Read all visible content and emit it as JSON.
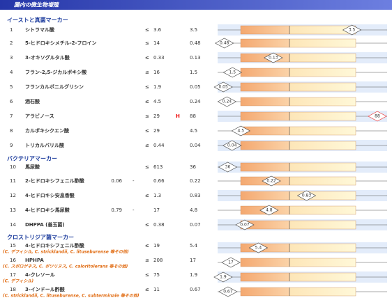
{
  "header": {
    "title": "腸内の微生物増殖"
  },
  "sections": [
    {
      "title": "イーストと真菌マーカー",
      "rows": [
        {
          "num": 1,
          "name": "シトラマル酸",
          "op": "≤",
          "high": 3.6,
          "value": 3.5
        },
        {
          "num": 2,
          "name": "5-ヒドロキシメチル-2-フロイン",
          "op": "≤",
          "high": 14,
          "value": 0.48
        },
        {
          "num": 3,
          "name": "3-オキソグルタル酸",
          "op": "≤",
          "high": 0.33,
          "value": 0.13
        },
        {
          "num": 4,
          "name": "フラン-2,5-ジカルボキシ酸",
          "op": "≤",
          "high": 16,
          "value": 1.5
        },
        {
          "num": 5,
          "name": "フランカルボニルグリシン",
          "op": "≤",
          "high": 1.9,
          "value": 0.05
        },
        {
          "num": 6,
          "name": "酒石酸",
          "op": "≤",
          "high": 4.5,
          "value": 0.24
        },
        {
          "num": 7,
          "name": "アラビノース",
          "op": "≤",
          "high": 29,
          "flag": "H",
          "value": 88
        },
        {
          "num": 8,
          "name": "カルボキシクエン酸",
          "op": "≤",
          "high": 29,
          "value": 4.5
        },
        {
          "num": 9,
          "name": "トリカルバリル酸",
          "op": "≤",
          "high": 0.44,
          "value": 0.04
        }
      ]
    },
    {
      "title": "バクテリアマーカー",
      "rows": [
        {
          "num": 10,
          "name": "馬尿酸",
          "op": "≤",
          "high": 613,
          "value": 36
        },
        {
          "num": 11,
          "name": "2-ヒドロキシフェニル酢酸",
          "low": 0.06,
          "op": "-",
          "high": 0.66,
          "value": 0.22
        },
        {
          "num": 12,
          "name": "4-ヒドロキシ安息香酸",
          "op": "≤",
          "high": 1.3,
          "value": 0.83
        },
        {
          "num": 13,
          "name": "4-ヒドロキシ馬尿酸",
          "low": 0.79,
          "op": "-",
          "high": 17,
          "value": 4.8
        },
        {
          "num": 14,
          "name": "DHPPA (善玉菌)",
          "op": "≤",
          "high": 0.38,
          "value": 0.07
        }
      ]
    },
    {
      "title": "クロストリジア菌マーカー",
      "rows": [
        {
          "num": 15,
          "name": "4-ヒドロキシフェニル酢酸",
          "note": "(C. デフィシル, C. stricklandii, C. lituseburense 等その他)",
          "op": "≤",
          "high": 19,
          "value": 5.4
        },
        {
          "num": 16,
          "name": "HPHPA",
          "note": "(C. スポロゲネス, C. ボツリヌス, C. caloritolerans 等その他)",
          "op": "≤",
          "high": 208,
          "value": 17
        },
        {
          "num": 17,
          "name": "4-クレソール",
          "note": "(C. デフィシル)",
          "op": "≤",
          "high": 75,
          "value": 1.9
        },
        {
          "num": 18,
          "name": "3-インドール酢酸",
          "note": "(C. stricklandii, C. lituseburense, C. subterminale 等その他)",
          "op": "≤",
          "high": 11,
          "value": 0.67
        }
      ]
    }
  ]
}
